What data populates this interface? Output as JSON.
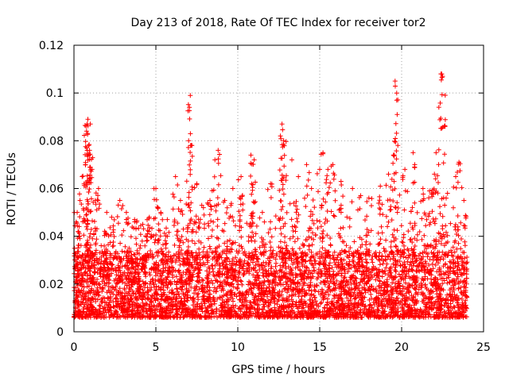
{
  "chart_data": {
    "type": "scatter",
    "title": "Day 213 of 2018, Rate Of TEC Index for receiver tor2",
    "xlabel": "GPS time / hours",
    "ylabel": "ROTI / TECUs",
    "xlim": [
      0,
      25
    ],
    "ylim": [
      0,
      0.12
    ],
    "x_ticks": [
      0,
      5,
      10,
      15,
      20,
      25
    ],
    "x_tick_labels": [
      "0",
      "5",
      "10",
      "15",
      "20",
      "25"
    ],
    "y_ticks": [
      0,
      0.02,
      0.04,
      0.06,
      0.08,
      0.1,
      0.12
    ],
    "y_tick_labels": [
      "0",
      "0.02",
      "0.04",
      "0.06",
      "0.08",
      "0.1",
      "0.12"
    ],
    "grid": true,
    "marker": "+",
    "color": "#ff0000",
    "series": [
      {
        "name": "ROTI",
        "note": "dense cloud of ~5000 points (0-24 h); baseline 0.005-0.03, frequent spikes 0.04-0.06; notable peaks listed below",
        "x": [
          0.2,
          0.3,
          0.5,
          0.7,
          0.8,
          0.85,
          0.9,
          0.95,
          1.0,
          1.1,
          1.3,
          1.5,
          2.0,
          2.3,
          2.8,
          3.2,
          3.7,
          4.2,
          4.6,
          5.0,
          5.3,
          5.7,
          6.2,
          6.5,
          7.0,
          7.05,
          7.1,
          7.2,
          7.5,
          7.8,
          8.3,
          8.6,
          8.8,
          9.2,
          9.7,
          10.2,
          10.8,
          11.0,
          11.5,
          12.0,
          12.6,
          12.7,
          12.8,
          13.3,
          13.7,
          14.2,
          14.5,
          15.0,
          15.2,
          15.5,
          15.8,
          16.3,
          17.0,
          17.5,
          18.0,
          18.7,
          19.2,
          19.5,
          19.6,
          19.7,
          20.2,
          20.7,
          20.8,
          21.3,
          21.7,
          22.0,
          22.1,
          22.4,
          22.5,
          22.8,
          23.3,
          23.5,
          23.8
        ],
        "y": [
          0.05,
          0.04,
          0.065,
          0.07,
          0.087,
          0.089,
          0.078,
          0.076,
          0.087,
          0.068,
          0.055,
          0.06,
          0.05,
          0.048,
          0.055,
          0.05,
          0.047,
          0.045,
          0.048,
          0.06,
          0.05,
          0.047,
          0.065,
          0.055,
          0.08,
          0.094,
          0.099,
          0.078,
          0.062,
          0.053,
          0.055,
          0.072,
          0.076,
          0.055,
          0.06,
          0.065,
          0.074,
          0.072,
          0.05,
          0.062,
          0.082,
          0.087,
          0.08,
          0.072,
          0.065,
          0.07,
          0.06,
          0.068,
          0.075,
          0.068,
          0.07,
          0.063,
          0.06,
          0.057,
          0.056,
          0.061,
          0.066,
          0.074,
          0.105,
          0.1,
          0.068,
          0.075,
          0.07,
          0.06,
          0.059,
          0.066,
          0.075,
          0.108,
          0.107,
          0.058,
          0.065,
          0.071,
          0.055
        ]
      }
    ]
  }
}
